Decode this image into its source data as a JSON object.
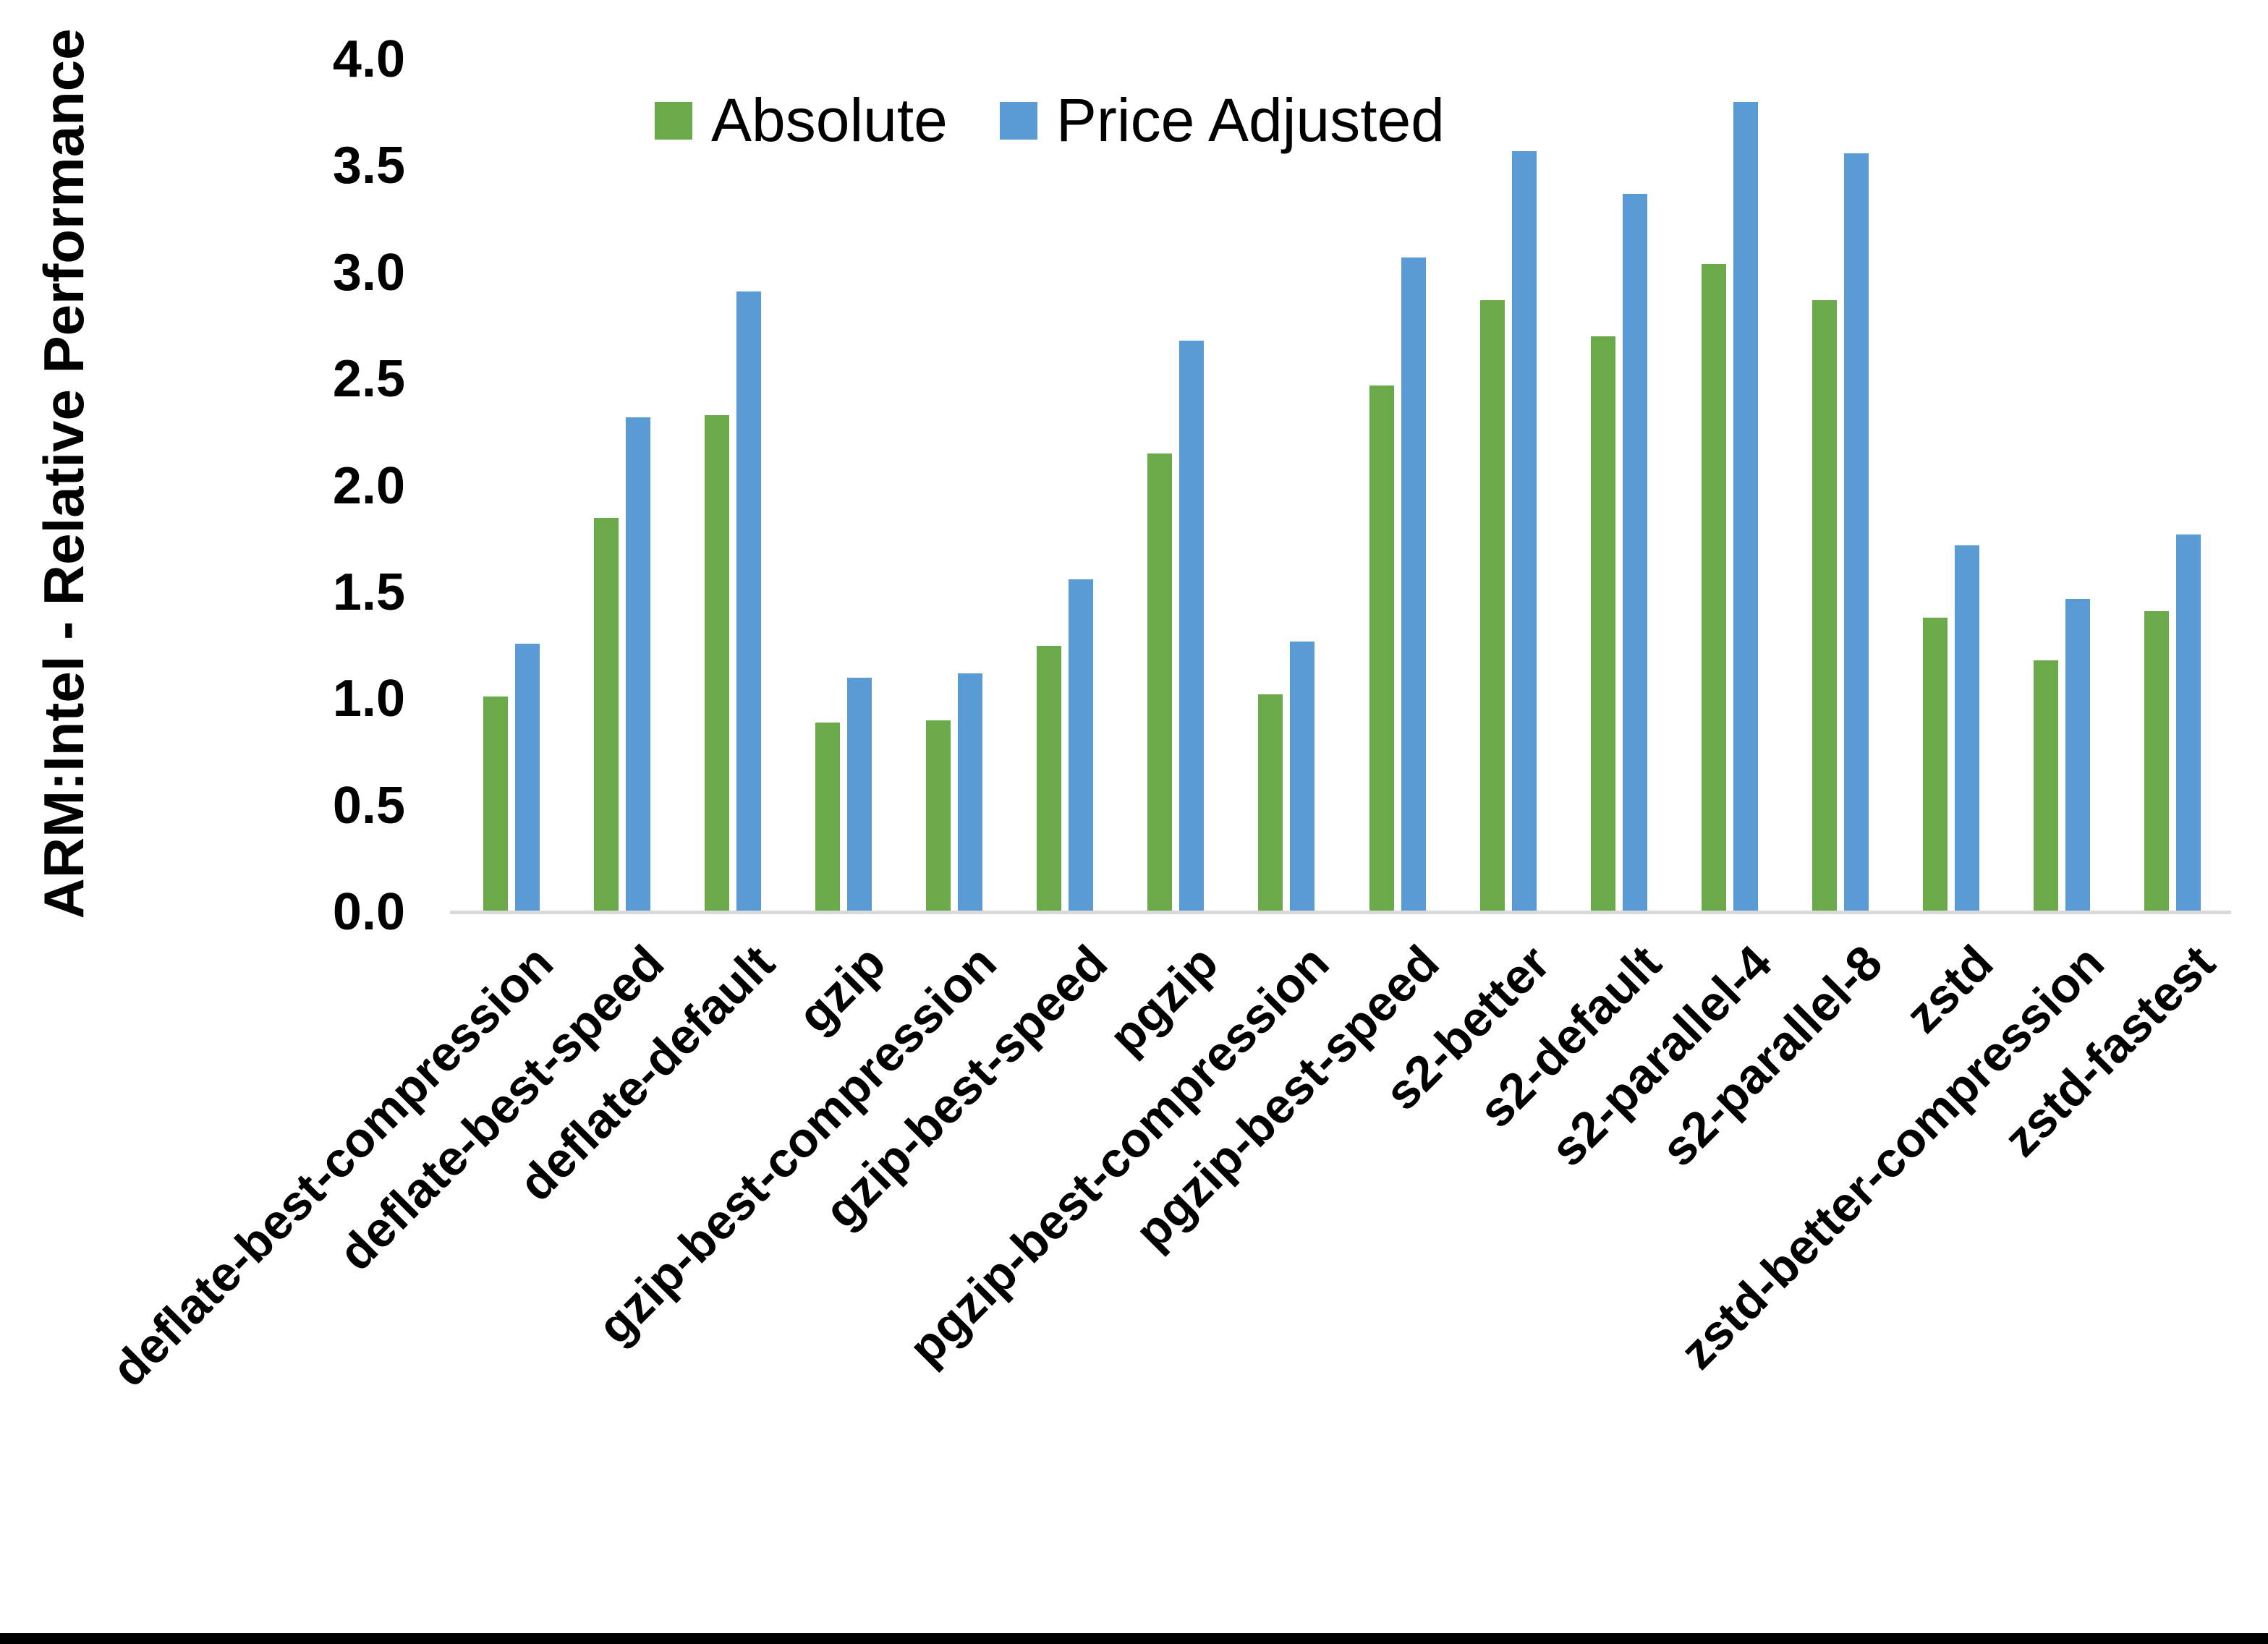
{
  "chart_data": {
    "type": "bar",
    "title": "",
    "ylabel": "ARM:Intel - Relative Performance",
    "xlabel": "",
    "ylim": [
      0.0,
      4.0
    ],
    "ytick_labels": [
      "0.0",
      "0.5",
      "1.0",
      "1.5",
      "2.0",
      "2.5",
      "3.0",
      "3.5",
      "4.0"
    ],
    "grid": false,
    "legend_position": "top-center-inside",
    "axis_line_color": "#D9D9D9",
    "categories": [
      "deflate-best-compression",
      "deflate-best-speed",
      "deflate-default",
      "gzip",
      "gzip-best-compression",
      "gzip-best-speed",
      "pgzip",
      "pgzip-best-compression",
      "pgzip-best-speed",
      "s2-better",
      "s2-default",
      "s2-parallel-4",
      "s2-parallel-8",
      "zstd",
      "zstd-better-compression",
      "zstd-fastest"
    ],
    "series": [
      {
        "name": "Absolute",
        "color": "#6AAA4B",
        "values": [
          1.01,
          1.85,
          2.33,
          0.89,
          0.9,
          1.25,
          2.15,
          1.02,
          2.47,
          2.87,
          2.7,
          3.04,
          2.87,
          1.38,
          1.18,
          1.41
        ]
      },
      {
        "name": "Price Adjusted",
        "color": "#5B9BD5",
        "values": [
          1.26,
          2.32,
          2.91,
          1.1,
          1.12,
          1.56,
          2.68,
          1.27,
          3.07,
          3.57,
          3.37,
          3.8,
          3.56,
          1.72,
          1.47,
          1.77
        ]
      }
    ]
  },
  "frame": {
    "bottom_bar_color": "#000000"
  }
}
